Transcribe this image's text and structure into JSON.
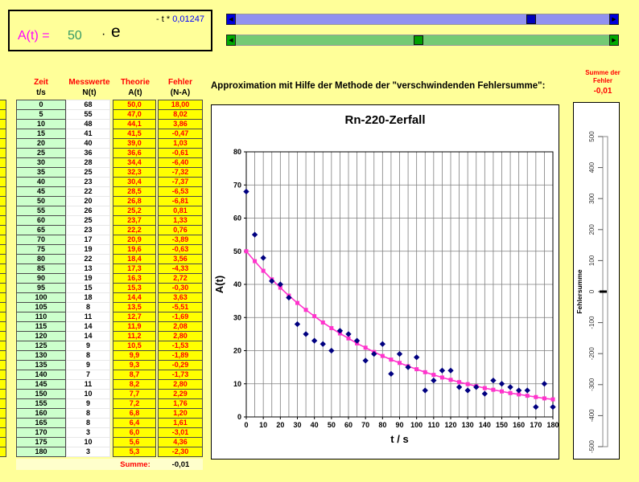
{
  "colors": {
    "background": "#FFFF99",
    "cell_yellow": "#FFFF00",
    "cell_green": "#CCFFCC",
    "accent_red": "#FF0000",
    "magenta": "#FF00FF",
    "theory_pink": "#FF33CC",
    "measured_navy": "#000080",
    "coef_green": "#339966",
    "exponent_blue": "#0000FF"
  },
  "icons": {
    "left_arrow": "◀",
    "right_arrow": "▶"
  },
  "formula": {
    "lhs": "A(t) =",
    "coefficient": "50",
    "operator": "·",
    "base": "e",
    "exponent_prefix": "- t *",
    "exponent_value": "0,01247"
  },
  "sliders": [
    {
      "name": "coefficient-scrollbar",
      "thumb_percent": 79
    },
    {
      "name": "exponent-scrollbar",
      "thumb_percent": 49
    }
  ],
  "caption": "Approximation mit Hilfe der Methode der \"verschwindenden Fehlersumme\":",
  "error_sum_box": {
    "label_line1": "Summe der",
    "label_line2": "Fehler",
    "value": "-0,01"
  },
  "table": {
    "headers": [
      {
        "title": "Zeit",
        "sub": "t/s"
      },
      {
        "title": "Messwerte",
        "sub": "N(t)"
      },
      {
        "title": "Theorie",
        "sub": "A(t)"
      },
      {
        "title": "Fehler",
        "sub": "(N-A)"
      }
    ],
    "rows": [
      [
        "0",
        "68",
        "50,0",
        "18,00"
      ],
      [
        "5",
        "55",
        "47,0",
        "8,02"
      ],
      [
        "10",
        "48",
        "44,1",
        "3,86"
      ],
      [
        "15",
        "41",
        "41,5",
        "-0,47"
      ],
      [
        "20",
        "40",
        "39,0",
        "1,03"
      ],
      [
        "25",
        "36",
        "36,6",
        "-0,61"
      ],
      [
        "30",
        "28",
        "34,4",
        "-6,40"
      ],
      [
        "35",
        "25",
        "32,3",
        "-7,32"
      ],
      [
        "40",
        "23",
        "30,4",
        "-7,37"
      ],
      [
        "45",
        "22",
        "28,5",
        "-6,53"
      ],
      [
        "50",
        "20",
        "26,8",
        "-6,81"
      ],
      [
        "55",
        "26",
        "25,2",
        "0,81"
      ],
      [
        "60",
        "25",
        "23,7",
        "1,33"
      ],
      [
        "65",
        "23",
        "22,2",
        "0,76"
      ],
      [
        "70",
        "17",
        "20,9",
        "-3,89"
      ],
      [
        "75",
        "19",
        "19,6",
        "-0,63"
      ],
      [
        "80",
        "22",
        "18,4",
        "3,56"
      ],
      [
        "85",
        "13",
        "17,3",
        "-4,33"
      ],
      [
        "90",
        "19",
        "16,3",
        "2,72"
      ],
      [
        "95",
        "15",
        "15,3",
        "-0,30"
      ],
      [
        "100",
        "18",
        "14,4",
        "3,63"
      ],
      [
        "105",
        "8",
        "13,5",
        "-5,51"
      ],
      [
        "110",
        "11",
        "12,7",
        "-1,69"
      ],
      [
        "115",
        "14",
        "11,9",
        "2,08"
      ],
      [
        "120",
        "14",
        "11,2",
        "2,80"
      ],
      [
        "125",
        "9",
        "10,5",
        "-1,53"
      ],
      [
        "130",
        "8",
        "9,9",
        "-1,89"
      ],
      [
        "135",
        "9",
        "9,3",
        "-0,29"
      ],
      [
        "140",
        "7",
        "8,7",
        "-1,73"
      ],
      [
        "145",
        "11",
        "8,2",
        "2,80"
      ],
      [
        "150",
        "10",
        "7,7",
        "2,29"
      ],
      [
        "155",
        "9",
        "7,2",
        "1,76"
      ],
      [
        "160",
        "8",
        "6,8",
        "1,20"
      ],
      [
        "165",
        "8",
        "6,4",
        "1,61"
      ],
      [
        "170",
        "3",
        "6,0",
        "-3,01"
      ],
      [
        "175",
        "10",
        "5,6",
        "4,36"
      ],
      [
        "180",
        "3",
        "5,3",
        "-2,30"
      ]
    ],
    "summe_label": "Summe:",
    "summe_value": "-0,01"
  },
  "chart_data": [
    {
      "type": "scatter",
      "title": "Rn-220-Zerfall",
      "xlabel": "t / s",
      "ylabel": "A(t)",
      "xlim": [
        0,
        180
      ],
      "ylim": [
        0,
        80
      ],
      "x_tick_step": 10,
      "y_tick_step": 10,
      "grid_x_step": 5,
      "grid_y_step": 10,
      "grid": true,
      "legend": "none",
      "x": [
        0,
        5,
        10,
        15,
        20,
        25,
        30,
        35,
        40,
        45,
        50,
        55,
        60,
        65,
        70,
        75,
        80,
        85,
        90,
        95,
        100,
        105,
        110,
        115,
        120,
        125,
        130,
        135,
        140,
        145,
        150,
        155,
        160,
        165,
        170,
        175,
        180
      ],
      "series": [
        {
          "name": "Messwerte N(t)",
          "marker": "diamond",
          "color": "#000080",
          "line": false,
          "values": [
            68,
            55,
            48,
            41,
            40,
            36,
            28,
            25,
            23,
            22,
            20,
            26,
            25,
            23,
            17,
            19,
            22,
            13,
            19,
            15,
            18,
            8,
            11,
            14,
            14,
            9,
            8,
            9,
            7,
            11,
            10,
            9,
            8,
            8,
            3,
            10,
            3
          ]
        },
        {
          "name": "Theorie A(t)",
          "marker": "square",
          "color": "#FF33CC",
          "line": true,
          "values": [
            50.0,
            47.0,
            44.1,
            41.5,
            39.0,
            36.6,
            34.4,
            32.3,
            30.4,
            28.5,
            26.8,
            25.2,
            23.7,
            22.2,
            20.9,
            19.6,
            18.4,
            17.3,
            16.3,
            15.3,
            14.4,
            13.5,
            12.7,
            11.9,
            11.2,
            10.5,
            9.9,
            9.3,
            8.7,
            8.2,
            7.7,
            7.2,
            6.8,
            6.4,
            6.0,
            5.6,
            5.3
          ]
        }
      ]
    },
    {
      "type": "bar",
      "ylabel": "Fehlersumme",
      "ylim": [
        -500,
        500
      ],
      "y_tick_step": 100,
      "categories": [
        "Summe der Fehler"
      ],
      "values": [
        -0.01
      ]
    }
  ]
}
